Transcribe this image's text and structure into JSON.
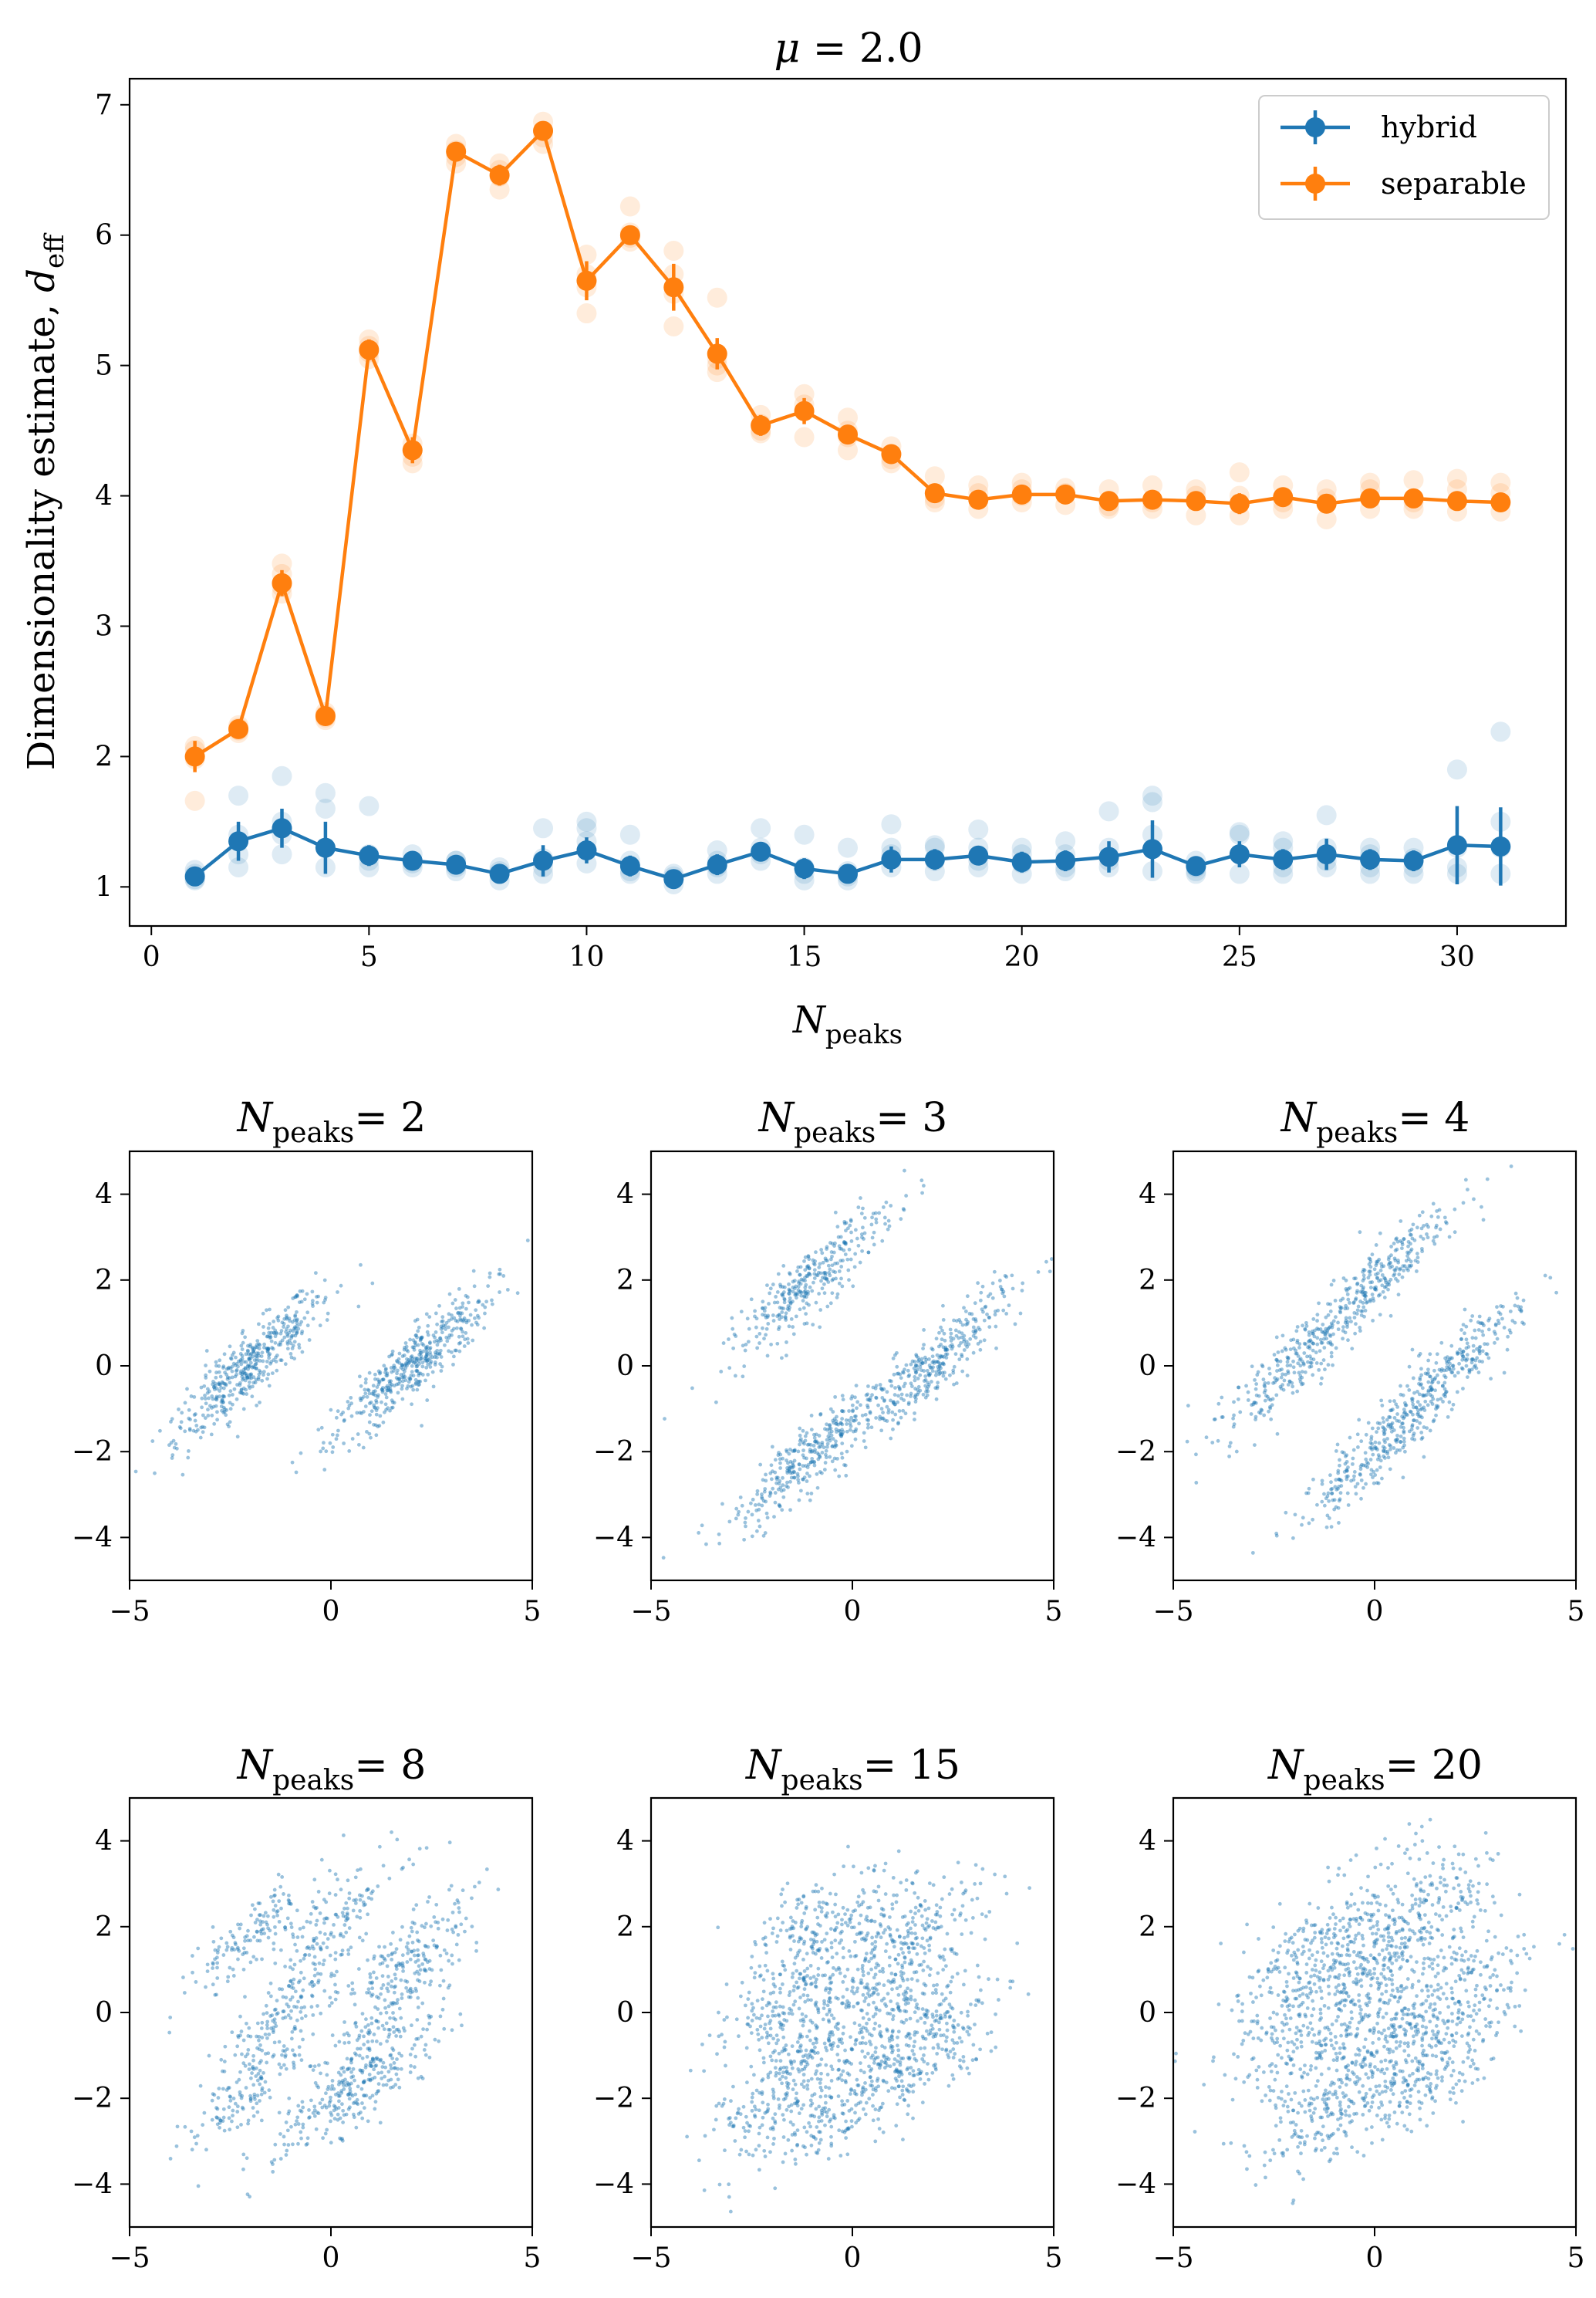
{
  "colors": {
    "hybrid": "#1f77b4",
    "separable": "#ff7f0e"
  },
  "chart_data": [
    {
      "id": "main",
      "type": "line",
      "title_prefix": "μ",
      "title_value": "= 2.0",
      "xlabel_base": "N",
      "xlabel_sub": "peaks",
      "ylabel_text": "Dimensionality estimate, ",
      "ylabel_sym": "d",
      "ylabel_sub": "eff",
      "xlim": [
        -0.5,
        32.5
      ],
      "ylim": [
        0.7,
        7.2
      ],
      "xticks": [
        0,
        5,
        10,
        15,
        20,
        25,
        30
      ],
      "yticks": [
        1,
        2,
        3,
        4,
        5,
        6,
        7
      ],
      "legend": [
        "hybrid",
        "separable"
      ],
      "legend_position": "top-right",
      "x": [
        1,
        2,
        3,
        4,
        5,
        6,
        7,
        8,
        9,
        10,
        11,
        12,
        13,
        14,
        15,
        16,
        17,
        18,
        19,
        20,
        21,
        22,
        23,
        24,
        25,
        26,
        27,
        28,
        29,
        30,
        31
      ],
      "series": [
        {
          "name": "hybrid",
          "values": [
            1.08,
            1.35,
            1.45,
            1.3,
            1.24,
            1.2,
            1.17,
            1.1,
            1.2,
            1.28,
            1.16,
            1.06,
            1.17,
            1.27,
            1.14,
            1.1,
            1.21,
            1.21,
            1.24,
            1.19,
            1.2,
            1.23,
            1.29,
            1.16,
            1.25,
            1.21,
            1.25,
            1.21,
            1.2,
            1.32,
            1.31
          ],
          "errors": [
            0.06,
            0.15,
            0.15,
            0.2,
            0.08,
            0.06,
            0.06,
            0.06,
            0.12,
            0.1,
            0.08,
            0.04,
            0.08,
            0.07,
            0.08,
            0.06,
            0.1,
            0.08,
            0.06,
            0.08,
            0.08,
            0.12,
            0.22,
            0.06,
            0.1,
            0.08,
            0.12,
            0.08,
            0.08,
            0.3,
            0.3
          ],
          "samples": [
            [
              1.05,
              1.1,
              1.13,
              1.06
            ],
            [
              1.15,
              1.25,
              1.7,
              1.4
            ],
            [
              1.25,
              1.5,
              1.85,
              1.4
            ],
            [
              1.15,
              1.6,
              1.72,
              1.3
            ],
            [
              1.15,
              1.25,
              1.62,
              1.2
            ],
            [
              1.15,
              1.25,
              1.2,
              1.18
            ],
            [
              1.12,
              1.2,
              1.15,
              1.2
            ],
            [
              1.05,
              1.15,
              1.1,
              1.12
            ],
            [
              1.15,
              1.22,
              1.45,
              1.1
            ],
            [
              1.18,
              1.35,
              1.5,
              1.45
            ],
            [
              1.1,
              1.2,
              1.4,
              1.12
            ],
            [
              1.02,
              1.08,
              1.1,
              1.06
            ],
            [
              1.1,
              1.2,
              1.28,
              1.15
            ],
            [
              1.2,
              1.3,
              1.45,
              1.25
            ],
            [
              1.05,
              1.1,
              1.4,
              1.15
            ],
            [
              1.05,
              1.12,
              1.3,
              1.08
            ],
            [
              1.15,
              1.25,
              1.48,
              1.3
            ],
            [
              1.12,
              1.3,
              1.32,
              1.2
            ],
            [
              1.15,
              1.3,
              1.44,
              1.2
            ],
            [
              1.1,
              1.25,
              1.3,
              1.18
            ],
            [
              1.12,
              1.25,
              1.35,
              1.15
            ],
            [
              1.15,
              1.3,
              1.58,
              1.2
            ],
            [
              1.12,
              1.4,
              1.7,
              1.65
            ],
            [
              1.1,
              1.15,
              1.2,
              1.12
            ],
            [
              1.1,
              1.25,
              1.42,
              1.4
            ],
            [
              1.15,
              1.3,
              1.35,
              1.1
            ],
            [
              1.15,
              1.3,
              1.55,
              1.2
            ],
            [
              1.1,
              1.25,
              1.3,
              1.15
            ],
            [
              1.1,
              1.22,
              1.3,
              1.15
            ],
            [
              1.15,
              1.3,
              1.9,
              1.1
            ],
            [
              1.1,
              1.5,
              2.19,
              1.3
            ]
          ]
        },
        {
          "name": "separable",
          "values": [
            2.0,
            2.21,
            3.33,
            2.31,
            5.12,
            4.35,
            6.64,
            6.46,
            6.8,
            5.65,
            6.0,
            5.6,
            5.09,
            4.54,
            4.65,
            4.47,
            4.32,
            4.02,
            3.97,
            4.01,
            4.01,
            3.96,
            3.97,
            3.96,
            3.94,
            3.99,
            3.94,
            3.98,
            3.98,
            3.96,
            3.95
          ],
          "errors": [
            0.12,
            0.06,
            0.1,
            0.05,
            0.08,
            0.1,
            0.05,
            0.08,
            0.07,
            0.15,
            0.07,
            0.18,
            0.12,
            0.08,
            0.1,
            0.07,
            0.06,
            0.06,
            0.05,
            0.05,
            0.05,
            0.05,
            0.05,
            0.05,
            0.08,
            0.05,
            0.05,
            0.05,
            0.05,
            0.05,
            0.05
          ],
          "samples": [
            [
              1.66,
              2.05,
              2.08,
              1.98
            ],
            [
              2.18,
              2.2,
              2.24,
              2.22
            ],
            [
              3.25,
              3.4,
              3.48,
              3.3
            ],
            [
              2.28,
              2.32,
              2.3,
              2.34
            ],
            [
              5.05,
              5.1,
              5.2,
              5.15
            ],
            [
              4.25,
              4.35,
              4.4,
              4.3
            ],
            [
              6.55,
              6.65,
              6.7,
              6.6
            ],
            [
              6.35,
              6.45,
              6.55,
              6.5
            ],
            [
              6.75,
              6.8,
              6.87,
              6.7
            ],
            [
              5.4,
              5.6,
              5.85,
              5.7
            ],
            [
              5.95,
              6.02,
              6.22,
              5.98
            ],
            [
              5.3,
              5.55,
              5.88,
              5.7
            ],
            [
              4.95,
              5.05,
              5.52,
              5.0
            ],
            [
              4.48,
              4.55,
              4.62,
              4.5
            ],
            [
              4.45,
              4.65,
              4.78,
              4.7
            ],
            [
              4.35,
              4.45,
              4.6,
              4.5
            ],
            [
              4.25,
              4.32,
              4.38,
              4.28
            ],
            [
              3.95,
              4.02,
              4.15,
              3.98
            ],
            [
              3.9,
              3.97,
              4.08,
              4.02
            ],
            [
              3.95,
              4.0,
              4.1,
              4.05
            ],
            [
              3.93,
              4.01,
              4.06,
              4.02
            ],
            [
              3.9,
              3.96,
              4.05,
              3.92
            ],
            [
              3.9,
              3.97,
              4.08,
              3.95
            ],
            [
              3.85,
              3.96,
              4.05,
              4.0
            ],
            [
              3.85,
              3.94,
              4.18,
              4.0
            ],
            [
              3.9,
              3.99,
              4.08,
              3.95
            ],
            [
              3.82,
              3.94,
              4.05,
              3.98
            ],
            [
              3.9,
              3.98,
              4.1,
              4.05
            ],
            [
              3.9,
              3.98,
              4.12,
              3.95
            ],
            [
              3.88,
              3.96,
              4.13,
              4.05
            ],
            [
              3.88,
              3.95,
              4.1,
              4.02
            ]
          ]
        }
      ]
    },
    {
      "id": "scatter-2",
      "type": "scatter",
      "title_base": "N",
      "title_sub": "peaks",
      "title_eq": "= 2",
      "xlim": [
        -5,
        5
      ],
      "ylim": [
        -5,
        5
      ],
      "xticks": [
        -5,
        0,
        5
      ],
      "yticks": [
        -4,
        -2,
        0,
        2,
        4
      ],
      "points_per_cluster": 450,
      "clusters": [
        [
          -2,
          0
        ],
        [
          2,
          0
        ]
      ],
      "band_slope": 0.9,
      "spread_along": 1.3,
      "spread_across": 0.3
    },
    {
      "id": "scatter-3",
      "type": "scatter",
      "title_base": "N",
      "title_sub": "peaks",
      "title_eq": "= 3",
      "xlim": [
        -5,
        5
      ],
      "ylim": [
        -5,
        5
      ],
      "xticks": [
        -5,
        0,
        5
      ],
      "yticks": [
        -4,
        -2,
        0,
        2,
        4
      ],
      "points_per_cluster": 330,
      "clusters": [
        [
          -1,
          2
        ],
        [
          2,
          0
        ],
        [
          -1,
          -2
        ]
      ],
      "band_slope": 0.9,
      "spread_along": 1.3,
      "spread_across": 0.3
    },
    {
      "id": "scatter-4",
      "type": "scatter",
      "title_base": "N",
      "title_sub": "peaks",
      "title_eq": "= 4",
      "xlim": [
        -5,
        5
      ],
      "ylim": [
        -5,
        5
      ],
      "xticks": [
        -5,
        0,
        5
      ],
      "yticks": [
        -4,
        -2,
        0,
        2,
        4
      ],
      "points_per_cluster": 250,
      "clusters": [
        [
          -2,
          0
        ],
        [
          0,
          2
        ],
        [
          0,
          -2
        ],
        [
          2,
          0
        ]
      ],
      "band_slope": 0.9,
      "spread_along": 1.3,
      "spread_across": 0.3
    },
    {
      "id": "scatter-8",
      "type": "scatter",
      "title_base": "N",
      "title_sub": "peaks",
      "title_eq": "= 8",
      "xlim": [
        -5,
        5
      ],
      "ylim": [
        -5,
        5
      ],
      "xticks": [
        -5,
        0,
        5
      ],
      "yticks": [
        -4,
        -2,
        0,
        2,
        4
      ],
      "points_per_cluster": 140,
      "clusters": [
        [
          -2,
          1.8
        ],
        [
          0,
          2
        ],
        [
          -2,
          -1.8
        ],
        [
          0,
          -2
        ],
        [
          1.5,
          0
        ],
        [
          2,
          1.5
        ],
        [
          1.2,
          -1.5
        ],
        [
          -1.2,
          0
        ]
      ],
      "band_slope": 0.9,
      "spread_along": 1.1,
      "spread_across": 0.3
    },
    {
      "id": "scatter-15",
      "type": "scatter",
      "title_base": "N",
      "title_sub": "peaks",
      "title_eq": "= 15",
      "xlim": [
        -5,
        5
      ],
      "ylim": [
        -5,
        5
      ],
      "xticks": [
        -5,
        0,
        5
      ],
      "yticks": [
        -4,
        -2,
        0,
        2,
        4
      ],
      "points_per_cluster": 100,
      "clusters": [
        [
          -1.5,
          1.8
        ],
        [
          0,
          2
        ],
        [
          -2,
          0
        ],
        [
          1,
          1.5
        ],
        [
          2,
          0
        ],
        [
          1,
          -1.5
        ],
        [
          0,
          -2
        ],
        [
          -1,
          -1
        ],
        [
          -2,
          -2
        ],
        [
          2,
          2
        ],
        [
          -1,
          1
        ],
        [
          0,
          0
        ],
        [
          1,
          0
        ],
        [
          -1.5,
          -2.5
        ],
        [
          2,
          -1
        ]
      ],
      "band_slope": 0.9,
      "spread_along": 1.0,
      "spread_across": 0.45
    },
    {
      "id": "scatter-20",
      "type": "scatter",
      "title_base": "N",
      "title_sub": "peaks",
      "title_eq": "= 20",
      "xlim": [
        -5,
        5
      ],
      "ylim": [
        -5,
        5
      ],
      "xticks": [
        -5,
        0,
        5
      ],
      "yticks": [
        -4,
        -2,
        0,
        2,
        4
      ],
      "points_per_cluster": 80,
      "clusters": [
        [
          -2,
          1
        ],
        [
          -1,
          2
        ],
        [
          0,
          2.5
        ],
        [
          1,
          2
        ],
        [
          2,
          1
        ],
        [
          -2,
          -1
        ],
        [
          -1,
          -2
        ],
        [
          0,
          -2
        ],
        [
          1,
          -1.5
        ],
        [
          2,
          -1
        ],
        [
          -1,
          0
        ],
        [
          0,
          0
        ],
        [
          1,
          0
        ],
        [
          -0.5,
          1
        ],
        [
          0.5,
          -1
        ],
        [
          2.5,
          0
        ],
        [
          -2.5,
          0
        ],
        [
          1.5,
          2.5
        ],
        [
          -1.5,
          -2.5
        ],
        [
          0,
          1
        ]
      ],
      "band_slope": 0.9,
      "spread_along": 1.0,
      "spread_across": 0.5
    }
  ]
}
